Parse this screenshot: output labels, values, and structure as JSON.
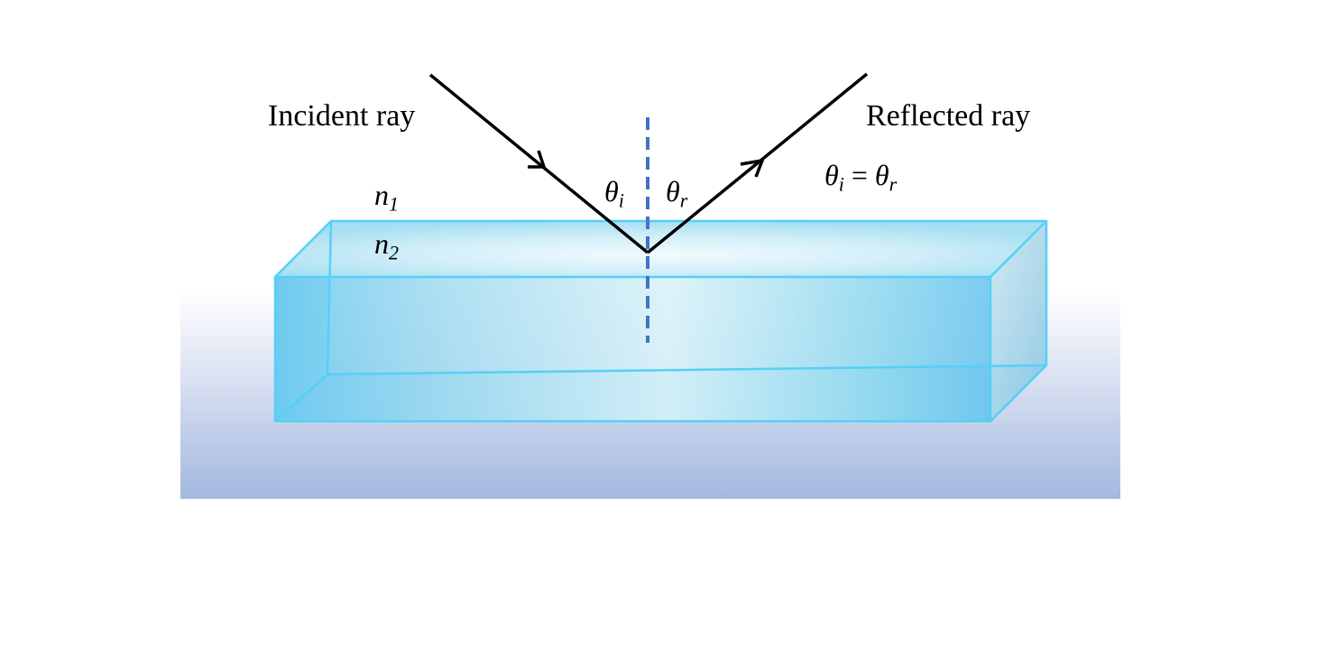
{
  "labels": {
    "incident_ray": "Incident ray",
    "reflected_ray": "Reflected ray",
    "medium_1": {
      "symbol": "n",
      "subscript": "1"
    },
    "medium_2": {
      "symbol": "n",
      "subscript": "2"
    },
    "angle_incidence": {
      "symbol": "θ",
      "subscript": "i"
    },
    "angle_reflection": {
      "symbol": "θ",
      "subscript": "r"
    },
    "law": {
      "left_symbol": "θ",
      "left_subscript": "i",
      "operator": "=",
      "right_symbol": "θ",
      "right_subscript": "r"
    }
  },
  "colors": {
    "ray": "#000000",
    "normal_line": "#4472c4",
    "slab_edge": "#55d0f5",
    "slab_fill": "#8fd6ee",
    "slab_highlight": "#eaf8fc",
    "background_top": "#ffffff",
    "background_bottom": "#a3b8df"
  }
}
